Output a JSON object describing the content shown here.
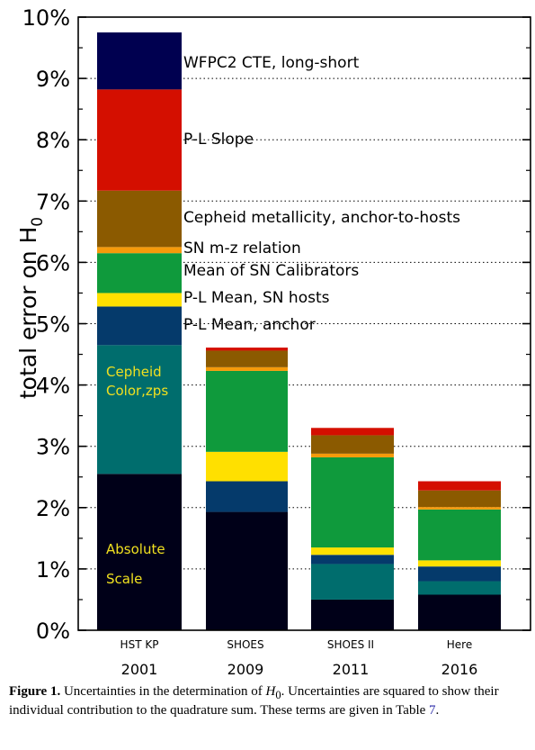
{
  "chart_data": {
    "type": "bar",
    "stacked": true,
    "ylabel": "total error on H",
    "ylabel_subscript": "0",
    "ylim": [
      0,
      10
    ],
    "yticks": [
      0,
      1,
      2,
      3,
      4,
      5,
      6,
      7,
      8,
      9,
      10
    ],
    "ytick_labels": [
      "0%",
      "1%",
      "2%",
      "3%",
      "4%",
      "5%",
      "6%",
      "7%",
      "8%",
      "9%",
      "10%"
    ],
    "grid": "horizontal dotted",
    "categories": [
      "HST KP",
      "SHOES",
      "SHOES II",
      "Here"
    ],
    "years": [
      "2001",
      "2009",
      "2011",
      "2016"
    ],
    "series": [
      {
        "name": "Absolute Scale",
        "color": "#000018",
        "values": [
          2.55,
          1.93,
          0.5,
          0.58
        ]
      },
      {
        "name": "Cepheid Color,zps",
        "color": "#006d6d",
        "values": [
          2.1,
          0.0,
          0.58,
          0.22
        ]
      },
      {
        "name": "P-L Mean, anchor",
        "color": "#053a6b",
        "values": [
          0.63,
          0.5,
          0.15,
          0.24
        ]
      },
      {
        "name": "P-L Mean, SN hosts",
        "color": "#ffe000",
        "values": [
          0.22,
          0.48,
          0.12,
          0.1
        ]
      },
      {
        "name": "Mean of SN Calibrators",
        "color": "#0f9a3c",
        "values": [
          0.65,
          1.32,
          1.47,
          0.83
        ]
      },
      {
        "name": "SN m-z relation",
        "color": "#f59a0a",
        "values": [
          0.1,
          0.06,
          0.06,
          0.04
        ]
      },
      {
        "name": "Cepheid metallicity, anchor-to-hosts",
        "color": "#8b5a00",
        "values": [
          0.92,
          0.27,
          0.3,
          0.27
        ]
      },
      {
        "name": "P-L Slope",
        "color": "#d40f00",
        "values": [
          1.65,
          0.05,
          0.12,
          0.15
        ]
      },
      {
        "name": "WFPC2 CTE, long-short",
        "color": "#000050",
        "values": [
          0.93,
          0.0,
          0.0,
          0.0
        ]
      }
    ],
    "annotations": [
      {
        "text": "WFPC2 CTE, long-short",
        "color": "#000000"
      },
      {
        "text": "P-L Slope",
        "color": "#000000"
      },
      {
        "text": "Cepheid metallicity, anchor-to-hosts",
        "color": "#000000"
      },
      {
        "text": "SN m-z relation",
        "color": "#000000"
      },
      {
        "text": "Mean of SN Calibrators",
        "color": "#000000"
      },
      {
        "text": "P-L Mean, SN hosts",
        "color": "#000000"
      },
      {
        "text": "P-L Mean, anchor",
        "color": "#000000"
      },
      {
        "text": "Cepheid",
        "color": "#f0e020"
      },
      {
        "text": "Color,zps",
        "color": "#f0e020"
      },
      {
        "text": "Absolute",
        "color": "#f0e020"
      },
      {
        "text": "Scale",
        "color": "#f0e020"
      }
    ]
  },
  "caption": {
    "label": "Figure 1.",
    "text_before": "Uncertainties in the determination of ",
    "h_symbol": "H",
    "h_subscript": "0",
    "text_after": ". Uncertainties are squared to show their individual contribution to the quadrature sum. These terms are given in Table ",
    "table_ref": "7",
    "end": "."
  }
}
